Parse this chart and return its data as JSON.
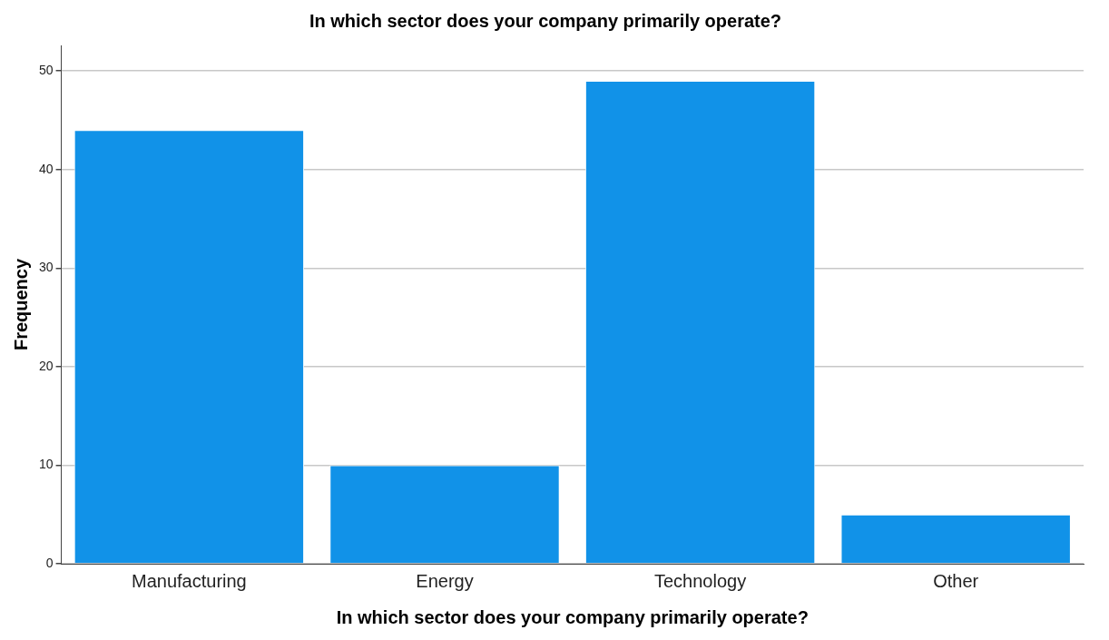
{
  "chart_data": {
    "type": "bar",
    "title": "In which sector does your company primarily operate?",
    "xlabel": "In which sector does your company primarily operate?",
    "ylabel": "Frequency",
    "categories": [
      "Manufacturing",
      "Energy",
      "Technology",
      "Other"
    ],
    "values": [
      44,
      10,
      49,
      5
    ],
    "color": "#1192e8",
    "ylim": [
      0,
      52.6
    ],
    "yticks": [
      0,
      10,
      20,
      30,
      40,
      50
    ],
    "grid": "y",
    "legend": false
  }
}
